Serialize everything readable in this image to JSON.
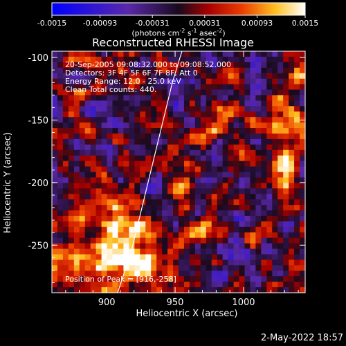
{
  "chart_data": {
    "type": "heatmap",
    "title": "Reconstructed RHESSI Image",
    "xlabel": "Heliocentric X (arcsec)",
    "ylabel": "Heliocentric Y (arcsec)",
    "xlim": [
      860,
      1045
    ],
    "ylim": [
      -288,
      -95
    ],
    "xticks": [
      900,
      950,
      1000
    ],
    "yticks": [
      -100,
      -150,
      -200,
      -250
    ],
    "colorbar": {
      "range": [
        -0.0015,
        0.0015
      ],
      "tick_labels": [
        "-0.0015",
        "-0.00093",
        "-0.00031",
        "0.00031",
        "0.00093",
        "0.0015"
      ],
      "unit_label": "(photons cm",
      "unit_sup1": "-2",
      "unit_mid": " s",
      "unit_sup2": "-1",
      "unit_tail": " asec",
      "unit_sup3": "-2",
      "unit_end": ")"
    },
    "annotations": {
      "time_range": "20-Sep-2005 09:08:32.000 to 09:08:52.000",
      "detectors": "Detectors: 3F 4F 5F 6F 7F 8F, Att 0",
      "energy": "Energy Range: 12.0 - 25.0 keV",
      "method": "Clean     Total counts: 440.",
      "peak": "Position of Peak = [916,-258]"
    },
    "limb": [
      [
        908,
        -288
      ],
      [
        918,
        -255
      ],
      [
        928,
        -210
      ],
      [
        938,
        -165
      ],
      [
        948,
        -120
      ],
      [
        955,
        -95
      ]
    ]
  },
  "footer": {
    "timestamp": "2-May-2022 18:57"
  }
}
